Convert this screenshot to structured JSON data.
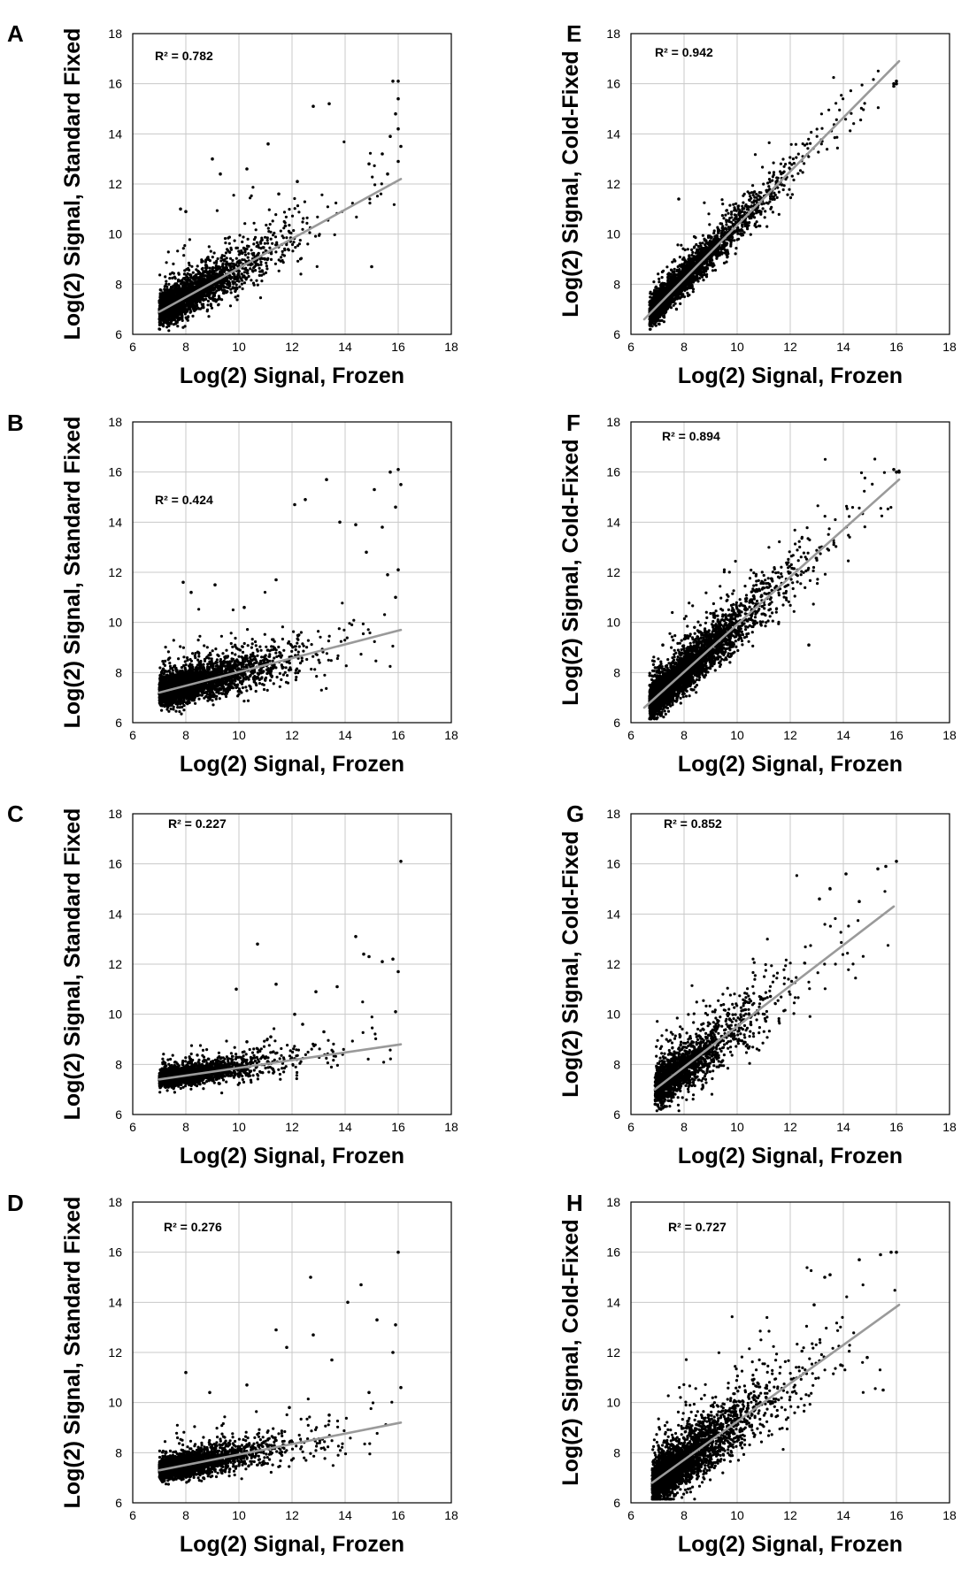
{
  "figure": {
    "panels": [
      "A",
      "B",
      "C",
      "D",
      "E",
      "F",
      "G",
      "H"
    ]
  },
  "chart_data": [
    {
      "panel": "A",
      "type": "scatter",
      "xlabel": "Log(2) Signal, Frozen",
      "ylabel": "Log(2) Signal, Standard Fixed",
      "xlim": [
        6,
        18
      ],
      "ylim": [
        6,
        18
      ],
      "xticks": [
        "6",
        "8",
        "10",
        "12",
        "14",
        "16",
        "18"
      ],
      "yticks": [
        "6",
        "8",
        "10",
        "12",
        "14",
        "16",
        "18"
      ],
      "annotation": "R² = 0.782",
      "r_squared": 0.782,
      "trendline": {
        "x": [
          7.0,
          16.1
        ],
        "y": [
          6.9,
          12.2
        ]
      },
      "points": {
        "n": 2600,
        "x_range": [
          7.0,
          16.1
        ],
        "slope": 0.58,
        "intercept": 2.84,
        "spread": 0.55,
        "seed": 11,
        "outliers": [
          [
            9.0,
            13.0
          ],
          [
            9.3,
            12.4
          ],
          [
            10.3,
            12.6
          ],
          [
            11.1,
            13.6
          ],
          [
            11.5,
            11.6
          ],
          [
            12.2,
            12.1
          ],
          [
            12.8,
            15.1
          ],
          [
            13.4,
            15.2
          ],
          [
            15.0,
            8.7
          ],
          [
            7.8,
            11.0
          ],
          [
            8.0,
            10.9
          ],
          [
            15.8,
            16.1
          ],
          [
            16.0,
            16.1
          ],
          [
            16.0,
            15.4
          ],
          [
            15.9,
            14.8
          ],
          [
            16.0,
            14.2
          ],
          [
            15.7,
            13.9
          ],
          [
            16.1,
            13.5
          ],
          [
            15.4,
            13.2
          ],
          [
            14.9,
            12.8
          ],
          [
            15.6,
            12.4
          ],
          [
            16.0,
            12.9
          ]
        ]
      }
    },
    {
      "panel": "B",
      "type": "scatter",
      "xlabel": "Log(2) Signal, Frozen",
      "ylabel": "Log(2) Signal, Standard Fixed",
      "xlim": [
        6,
        18
      ],
      "ylim": [
        6,
        18
      ],
      "xticks": [
        "6",
        "8",
        "10",
        "12",
        "14",
        "16",
        "18"
      ],
      "yticks": [
        "6",
        "8",
        "10",
        "12",
        "14",
        "16",
        "18"
      ],
      "annotation": "R² = 0.424",
      "r_squared": 0.424,
      "trendline": {
        "x": [
          7.0,
          16.1
        ],
        "y": [
          7.2,
          9.7
        ]
      },
      "points": {
        "n": 3400,
        "x_range": [
          7.0,
          16.1
        ],
        "slope": 0.27,
        "intercept": 5.3,
        "spread": 0.45,
        "seed": 23,
        "outliers": [
          [
            7.9,
            11.6
          ],
          [
            8.2,
            11.2
          ],
          [
            9.1,
            11.5
          ],
          [
            10.2,
            10.6
          ],
          [
            11.4,
            11.7
          ],
          [
            12.1,
            14.7
          ],
          [
            12.5,
            14.9
          ],
          [
            13.3,
            15.7
          ],
          [
            13.8,
            14.0
          ],
          [
            14.4,
            13.9
          ],
          [
            15.1,
            15.3
          ],
          [
            15.7,
            16.0
          ],
          [
            16.0,
            16.1
          ],
          [
            16.1,
            15.5
          ],
          [
            15.9,
            14.6
          ],
          [
            15.4,
            13.8
          ],
          [
            14.8,
            12.8
          ],
          [
            16.0,
            12.1
          ],
          [
            15.6,
            11.9
          ],
          [
            15.9,
            11.0
          ]
        ]
      }
    },
    {
      "panel": "C",
      "type": "scatter",
      "xlabel": "Log(2) Signal, Frozen",
      "ylabel": "Log(2) Signal, Standard Fixed",
      "xlim": [
        6,
        18
      ],
      "ylim": [
        6,
        18
      ],
      "xticks": [
        "6",
        "8",
        "10",
        "12",
        "14",
        "16",
        "18"
      ],
      "yticks": [
        "6",
        "8",
        "10",
        "12",
        "14",
        "16",
        "18"
      ],
      "annotation": "R² = 0.227",
      "r_squared": 0.227,
      "trendline": {
        "x": [
          7.0,
          16.1
        ],
        "y": [
          7.4,
          8.8
        ]
      },
      "points": {
        "n": 2000,
        "x_range": [
          7.0,
          16.1
        ],
        "slope": 0.16,
        "intercept": 6.3,
        "spread": 0.3,
        "seed": 37,
        "outliers": [
          [
            9.9,
            11.0
          ],
          [
            10.7,
            12.8
          ],
          [
            11.4,
            11.2
          ],
          [
            12.1,
            10.0
          ],
          [
            12.9,
            10.9
          ],
          [
            13.7,
            11.1
          ],
          [
            14.4,
            13.1
          ],
          [
            14.7,
            12.4
          ],
          [
            14.9,
            12.3
          ],
          [
            15.4,
            12.1
          ],
          [
            15.8,
            12.2
          ],
          [
            16.1,
            16.1
          ],
          [
            16.0,
            11.7
          ],
          [
            15.9,
            10.1
          ],
          [
            13.2,
            9.3
          ],
          [
            12.4,
            9.6
          ],
          [
            11.2,
            9.1
          ],
          [
            10.3,
            8.9
          ]
        ]
      }
    },
    {
      "panel": "D",
      "type": "scatter",
      "xlabel": "Log(2) Signal, Frozen",
      "ylabel": "Log(2) Signal, Standard Fixed",
      "xlim": [
        6,
        18
      ],
      "ylim": [
        6,
        18
      ],
      "xticks": [
        "6",
        "8",
        "10",
        "12",
        "14",
        "16",
        "18"
      ],
      "yticks": [
        "6",
        "8",
        "10",
        "12",
        "14",
        "16",
        "18"
      ],
      "annotation": "R² = 0.276",
      "r_squared": 0.276,
      "trendline": {
        "x": [
          7.0,
          16.1
        ],
        "y": [
          7.3,
          9.2
        ]
      },
      "points": {
        "n": 2600,
        "x_range": [
          7.0,
          16.1
        ],
        "slope": 0.2,
        "intercept": 5.9,
        "spread": 0.35,
        "seed": 51,
        "outliers": [
          [
            8.0,
            11.2
          ],
          [
            8.9,
            10.4
          ],
          [
            10.3,
            10.7
          ],
          [
            11.4,
            12.9
          ],
          [
            11.8,
            12.2
          ],
          [
            12.7,
            15.0
          ],
          [
            12.8,
            12.7
          ],
          [
            13.5,
            11.7
          ],
          [
            14.1,
            14.0
          ],
          [
            14.6,
            14.7
          ],
          [
            15.2,
            13.3
          ],
          [
            16.0,
            16.0
          ],
          [
            15.9,
            13.1
          ],
          [
            15.8,
            12.0
          ],
          [
            16.1,
            10.6
          ],
          [
            14.9,
            10.4
          ],
          [
            13.4,
            9.5
          ],
          [
            11.9,
            9.8
          ]
        ]
      }
    },
    {
      "panel": "E",
      "type": "scatter",
      "xlabel": "Log(2) Signal, Frozen",
      "ylabel": "Log(2) Signal, Cold-Fixed",
      "xlim": [
        6,
        18
      ],
      "ylim": [
        6,
        18
      ],
      "xticks": [
        "6",
        "8",
        "10",
        "12",
        "14",
        "16",
        "18"
      ],
      "yticks": [
        "6",
        "8",
        "10",
        "12",
        "14",
        "16",
        "18"
      ],
      "annotation": "R² = 0.942",
      "r_squared": 0.942,
      "trendline": {
        "x": [
          6.5,
          16.1
        ],
        "y": [
          6.6,
          16.9
        ]
      },
      "points": {
        "n": 3200,
        "x_range": [
          6.7,
          16.1
        ],
        "slope": 1.07,
        "intercept": -0.35,
        "spread": 0.42,
        "seed": 63,
        "outliers": [
          [
            7.8,
            11.4
          ],
          [
            16.0,
            16.0
          ],
          [
            15.9,
            15.9
          ],
          [
            16.0,
            16.1
          ],
          [
            15.9,
            16.0
          ]
        ]
      }
    },
    {
      "panel": "F",
      "type": "scatter",
      "xlabel": "Log(2) Signal, Frozen",
      "ylabel": "Log(2) Signal, Cold-Fixed",
      "xlim": [
        6,
        18
      ],
      "ylim": [
        6,
        18
      ],
      "xticks": [
        "6",
        "8",
        "10",
        "12",
        "14",
        "16",
        "18"
      ],
      "yticks": [
        "6",
        "8",
        "10",
        "12",
        "14",
        "16",
        "18"
      ],
      "annotation": "R² = 0.894",
      "r_squared": 0.894,
      "trendline": {
        "x": [
          6.5,
          16.1
        ],
        "y": [
          6.6,
          15.7
        ]
      },
      "points": {
        "n": 4200,
        "x_range": [
          6.7,
          16.1
        ],
        "slope": 0.95,
        "intercept": 0.4,
        "spread": 0.55,
        "seed": 71,
        "outliers": [
          [
            16.0,
            16.0
          ],
          [
            15.9,
            16.1
          ],
          [
            16.1,
            16.0
          ],
          [
            12.7,
            9.1
          ],
          [
            7.2,
            9.1
          ]
        ]
      }
    },
    {
      "panel": "G",
      "type": "scatter",
      "xlabel": "Log(2) Signal, Frozen",
      "ylabel": "Log(2) Signal, Cold-Fixed",
      "xlim": [
        6,
        18
      ],
      "ylim": [
        6,
        18
      ],
      "xticks": [
        "6",
        "8",
        "10",
        "12",
        "14",
        "16",
        "18"
      ],
      "yticks": [
        "6",
        "8",
        "10",
        "12",
        "14",
        "16",
        "18"
      ],
      "annotation": "R² = 0.852",
      "r_squared": 0.852,
      "trendline": {
        "x": [
          6.9,
          15.9
        ],
        "y": [
          7.0,
          14.3
        ]
      },
      "points": {
        "n": 1900,
        "x_range": [
          6.9,
          16.0
        ],
        "slope": 0.8,
        "intercept": 1.5,
        "spread": 0.7,
        "seed": 83,
        "outliers": [
          [
            13.5,
            15.0
          ],
          [
            14.1,
            15.6
          ],
          [
            15.3,
            15.8
          ],
          [
            16.0,
            16.1
          ],
          [
            15.6,
            15.9
          ],
          [
            14.6,
            14.5
          ],
          [
            13.1,
            14.6
          ]
        ]
      }
    },
    {
      "panel": "H",
      "type": "scatter",
      "xlabel": "Log(2) Signal, Frozen",
      "ylabel": "Log(2) Signal, Cold-Fixed",
      "xlim": [
        6,
        18
      ],
      "ylim": [
        6,
        18
      ],
      "xticks": [
        "6",
        "8",
        "10",
        "12",
        "14",
        "16",
        "18"
      ],
      "yticks": [
        "6",
        "8",
        "10",
        "12",
        "14",
        "16",
        "18"
      ],
      "annotation": "R² = 0.727",
      "r_squared": 0.727,
      "trendline": {
        "x": [
          6.8,
          16.1
        ],
        "y": [
          6.8,
          13.9
        ]
      },
      "points": {
        "n": 3100,
        "x_range": [
          6.8,
          16.1
        ],
        "slope": 0.77,
        "intercept": 1.5,
        "spread": 0.75,
        "seed": 97,
        "outliers": [
          [
            14.6,
            15.7
          ],
          [
            15.4,
            15.9
          ],
          [
            15.8,
            16.0
          ],
          [
            16.0,
            16.0
          ],
          [
            13.5,
            15.1
          ],
          [
            13.3,
            15.0
          ],
          [
            15.5,
            10.5
          ],
          [
            14.9,
            11.8
          ],
          [
            13.9,
            11.5
          ],
          [
            12.9,
            13.9
          ]
        ]
      }
    }
  ]
}
